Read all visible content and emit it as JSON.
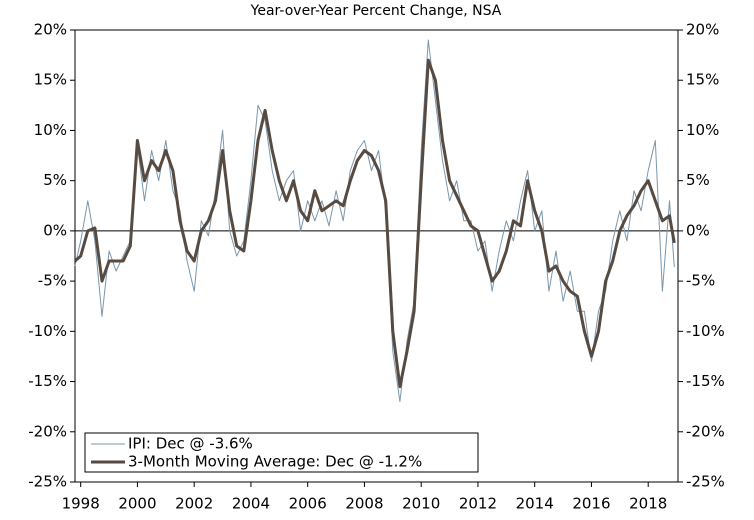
{
  "chart_data": {
    "type": "line",
    "title": "Year-over-Year Percent Change, NSA",
    "xlim": [
      1997.8,
      2019.05
    ],
    "xticks": [
      1998,
      2000,
      2002,
      2004,
      2006,
      2008,
      2010,
      2012,
      2014,
      2016,
      2018
    ],
    "ylim": [
      -25,
      20
    ],
    "yticks": [
      {
        "value": -25,
        "label": "-25%"
      },
      {
        "value": -20,
        "label": "-20%"
      },
      {
        "value": -15,
        "label": "-15%"
      },
      {
        "value": -10,
        "label": "-10%"
      },
      {
        "value": -5,
        "label": "-5%"
      },
      {
        "value": 0,
        "label": "0%"
      },
      {
        "value": 5,
        "label": "5%"
      },
      {
        "value": 10,
        "label": "10%"
      },
      {
        "value": 15,
        "label": "15%"
      },
      {
        "value": 20,
        "label": "20%"
      }
    ],
    "legend": "lower left",
    "x": [
      1997.8,
      1998.0,
      1998.25,
      1998.5,
      1998.75,
      1999.0,
      1999.25,
      1999.5,
      1999.75,
      2000.0,
      2000.25,
      2000.5,
      2000.75,
      2001.0,
      2001.25,
      2001.5,
      2001.75,
      2002.0,
      2002.25,
      2002.5,
      2002.75,
      2003.0,
      2003.25,
      2003.5,
      2003.75,
      2004.0,
      2004.25,
      2004.5,
      2004.75,
      2005.0,
      2005.25,
      2005.5,
      2005.75,
      2006.0,
      2006.25,
      2006.5,
      2006.75,
      2007.0,
      2007.25,
      2007.5,
      2007.75,
      2008.0,
      2008.25,
      2008.5,
      2008.75,
      2009.0,
      2009.25,
      2009.5,
      2009.75,
      2010.0,
      2010.25,
      2010.5,
      2010.75,
      2011.0,
      2011.25,
      2011.5,
      2011.75,
      2012.0,
      2012.25,
      2012.5,
      2012.75,
      2013.0,
      2013.25,
      2013.5,
      2013.75,
      2014.0,
      2014.25,
      2014.5,
      2014.75,
      2015.0,
      2015.25,
      2015.5,
      2015.75,
      2016.0,
      2016.25,
      2016.5,
      2016.75,
      2017.0,
      2017.25,
      2017.5,
      2017.75,
      2018.0,
      2018.25,
      2018.5,
      2018.75,
      2018.92
    ],
    "series": [
      {
        "name": "IPI: Dec @ -3.6%",
        "color": "#7a96ad",
        "width": 1,
        "values": [
          -3.5,
          -1,
          3,
          -1,
          -8.5,
          -2,
          -4,
          -2.5,
          -1,
          8.5,
          3,
          8,
          5,
          9,
          4,
          2,
          -3,
          -6,
          1,
          -0.5,
          4,
          10,
          0,
          -2.5,
          -1,
          5,
          12.5,
          11,
          6,
          3,
          5,
          6,
          0,
          3,
          1,
          3,
          0.5,
          4,
          1,
          6,
          8,
          9,
          6,
          8,
          2,
          -12,
          -17,
          -11,
          -7,
          8,
          19,
          13,
          7,
          3,
          5,
          1,
          1,
          -2,
          -1,
          -6,
          -2,
          1,
          -1,
          3,
          6,
          0,
          2,
          -6,
          -2,
          -7,
          -4,
          -8,
          -8,
          -13,
          -8,
          -6,
          -1,
          2,
          -1,
          4,
          2,
          6,
          9,
          -6,
          3,
          -3.6
        ]
      },
      {
        "name": "3-Month Moving Average: Dec @ -1.2%",
        "color": "#574a40",
        "width": 3,
        "values": [
          -3,
          -2.5,
          0,
          0.3,
          -5,
          -3,
          -3,
          -3,
          -1.5,
          9,
          5,
          7,
          6,
          8,
          6,
          1,
          -2,
          -3,
          0,
          1,
          3,
          8,
          2,
          -1.5,
          -2,
          3,
          9,
          12,
          8,
          5,
          3,
          5,
          2,
          1,
          4,
          2,
          2.5,
          3,
          2.5,
          5,
          7,
          8,
          7.5,
          6,
          3,
          -10,
          -15.5,
          -12,
          -8,
          5,
          17,
          15,
          9,
          5,
          3.5,
          2,
          0.5,
          0,
          -2.5,
          -5,
          -4,
          -2,
          1,
          0.5,
          5,
          2,
          0,
          -4,
          -3.5,
          -5,
          -6,
          -6.5,
          -10,
          -12.5,
          -10,
          -5,
          -3,
          0,
          1.5,
          2.5,
          4,
          5,
          3,
          1,
          1.5,
          -1.2
        ]
      }
    ]
  }
}
